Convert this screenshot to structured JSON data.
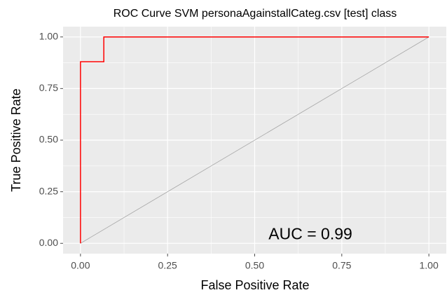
{
  "chart_data": {
    "type": "line",
    "title": "ROC Curve SVM personaAgainstallCateg.csv [test] class",
    "x_label": "False Positive Rate",
    "y_label": "True Positive Rate",
    "x": [
      0,
      0,
      0.067,
      0.067,
      1
    ],
    "values": [
      0,
      0.88,
      0.88,
      1,
      1
    ],
    "color": "#ff0000",
    "reference_line": {
      "x": [
        0,
        1
      ],
      "values": [
        0,
        1
      ],
      "color": "#a6a6a6"
    },
    "annotation": {
      "text": "AUC = 0.99",
      "x": 0.66,
      "y": 0.04
    },
    "xlim": [
      -0.05,
      1.05
    ],
    "ylim": [
      -0.05,
      1.05
    ],
    "xticks": [
      {
        "value": 0,
        "label": "0.00"
      },
      {
        "value": 0.25,
        "label": "0.25"
      },
      {
        "value": 0.5,
        "label": "0.50"
      },
      {
        "value": 0.75,
        "label": "0.75"
      },
      {
        "value": 1,
        "label": "1.00"
      }
    ],
    "yticks": [
      {
        "value": 0,
        "label": "0.00"
      },
      {
        "value": 0.25,
        "label": "0.25"
      },
      {
        "value": 0.5,
        "label": "0.50"
      },
      {
        "value": 0.75,
        "label": "0.75"
      },
      {
        "value": 1,
        "label": "1.00"
      }
    ],
    "xminor": [
      0.125,
      0.375,
      0.625,
      0.875
    ],
    "yminor": [
      0.125,
      0.375,
      0.625,
      0.875
    ],
    "grid": true
  }
}
